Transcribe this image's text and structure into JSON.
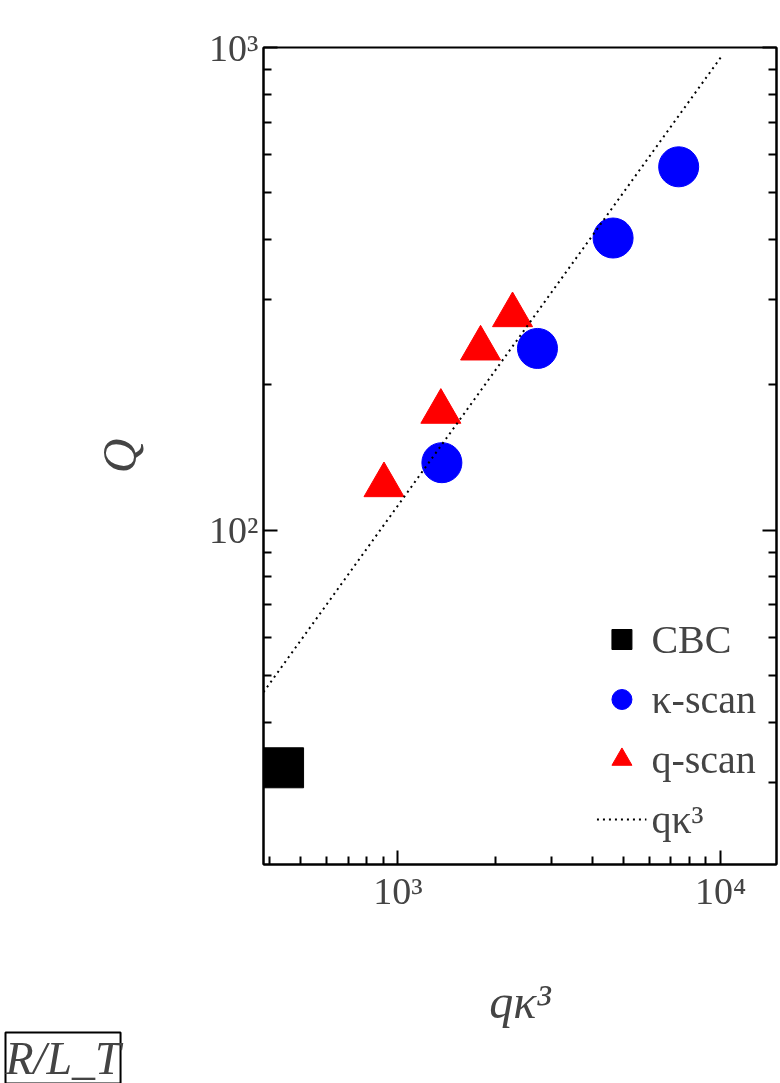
{
  "chart_data": {
    "type": "scatter",
    "xlabel": "qκ³",
    "ylabel": "Q",
    "log": "xy",
    "xlim": [
      383,
      14900
    ],
    "ylim": [
      20.3,
      1000
    ],
    "xticks": [
      {
        "value": 1000,
        "label": "10³"
      },
      {
        "value": 10000,
        "label": "10⁴"
      }
    ],
    "yticks": [
      {
        "value": 100,
        "label": "10²"
      },
      {
        "value": 1000,
        "label": "10³"
      }
    ],
    "grid": false,
    "legend": "bottom right",
    "annotations": [
      "R/L_T"
    ],
    "series": [
      {
        "name": "CBC",
        "color": "#000000",
        "marker": "square",
        "x": [
          442
        ],
        "values": [
          32.2
        ]
      },
      {
        "name": "κ-scan",
        "color": "#0000ff",
        "marker": "circle",
        "x": [
          1368,
          2706,
          4642,
          7413
        ],
        "values": [
          138,
          238,
          403,
          566
        ]
      },
      {
        "name": "q-scan",
        "color": "#ff0000",
        "marker": "triangle",
        "x": [
          905,
          1358,
          1803,
          2265
        ],
        "values": [
          124,
          176,
          238,
          279
        ]
      },
      {
        "name": "qκ³",
        "type": "line",
        "color": "#000000",
        "line_style": "dotted",
        "x": [
          383,
          10000
        ],
        "values": [
          46.2,
          953
        ]
      }
    ]
  }
}
